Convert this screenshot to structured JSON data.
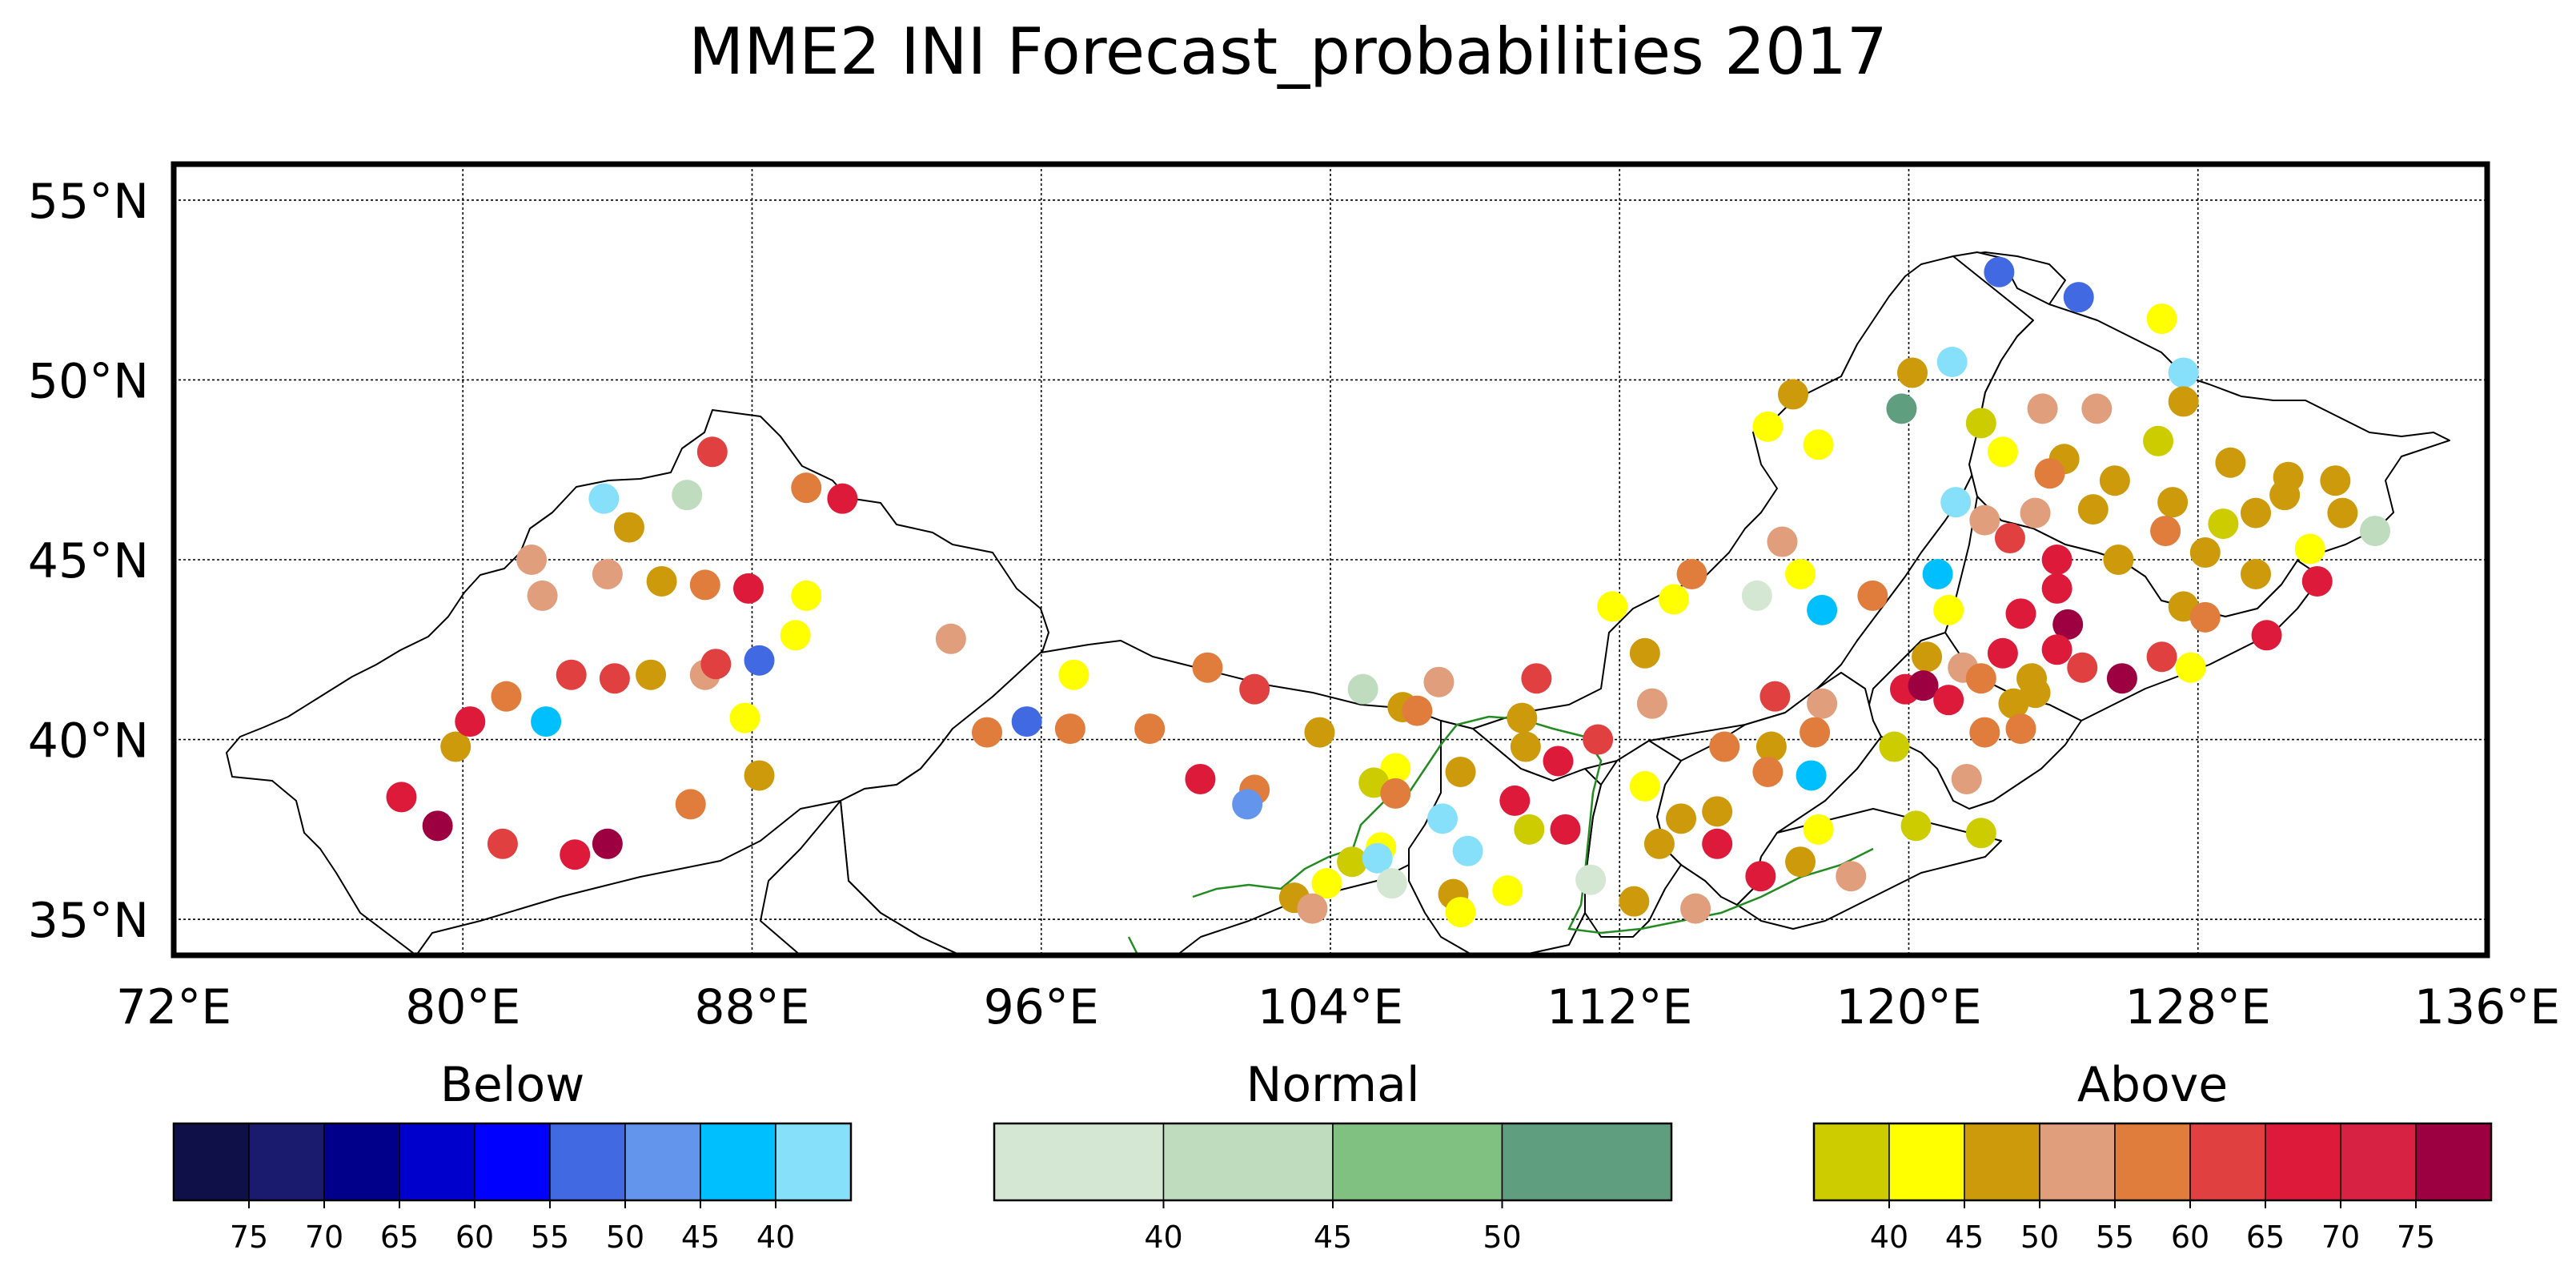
{
  "title": "MME2 INI Forecast_probabilities 2017",
  "map": {
    "lon_range": [
      72,
      136
    ],
    "lat_range": [
      34,
      56
    ],
    "x_ticks": [
      72,
      80,
      88,
      96,
      104,
      112,
      120,
      128,
      136
    ],
    "x_tick_labels": [
      "72°E",
      "80°E",
      "88°E",
      "96°E",
      "104°E",
      "112°E",
      "120°E",
      "128°E",
      "136°E"
    ],
    "y_ticks": [
      35,
      40,
      45,
      50,
      55
    ],
    "y_tick_labels": [
      "35°N",
      "40°N",
      "45°N",
      "50°N",
      "55°N"
    ],
    "grid": true
  },
  "colorbars": [
    {
      "name": "Below",
      "colors": [
        "#101048",
        "#1a1a6e",
        "#00008b",
        "#0000cd",
        "#0000ff",
        "#4169e1",
        "#6495ed",
        "#00bfff",
        "#87e0fa"
      ],
      "labels": [
        "75",
        "70",
        "65",
        "60",
        "55",
        "50",
        "45",
        "40"
      ]
    },
    {
      "name": "Normal",
      "colors": [
        "#d3e7d3",
        "#bfdcbf",
        "#80c080",
        "#5f9f7f"
      ],
      "labels": [
        "40",
        "45",
        "50"
      ]
    },
    {
      "name": "Above",
      "colors": [
        "#cccc00",
        "#ffff00",
        "#cc9a0a",
        "#e09e7c",
        "#e07d3c",
        "#e04040",
        "#dd1a3a",
        "#d72244",
        "#9c0040"
      ],
      "labels": [
        "40",
        "45",
        "50",
        "55",
        "60",
        "65",
        "70",
        "75"
      ]
    }
  ],
  "stations": [
    {
      "lon": 122.5,
      "lat": 53.0,
      "c": "#4169e1"
    },
    {
      "lon": 124.7,
      "lat": 52.3,
      "c": "#4169e1"
    },
    {
      "lon": 127.0,
      "lat": 51.7,
      "c": "#ffff00"
    },
    {
      "lon": 121.2,
      "lat": 50.5,
      "c": "#87e0fa"
    },
    {
      "lon": 120.1,
      "lat": 50.2,
      "c": "#cc9a0a"
    },
    {
      "lon": 127.6,
      "lat": 50.2,
      "c": "#87e0fa"
    },
    {
      "lon": 119.8,
      "lat": 49.2,
      "c": "#5f9f7f"
    },
    {
      "lon": 116.8,
      "lat": 49.6,
      "c": "#cc9a0a"
    },
    {
      "lon": 123.7,
      "lat": 49.2,
      "c": "#e09e7c"
    },
    {
      "lon": 125.2,
      "lat": 49.2,
      "c": "#e09e7c"
    },
    {
      "lon": 127.6,
      "lat": 49.4,
      "c": "#cc9a0a"
    },
    {
      "lon": 116.1,
      "lat": 48.7,
      "c": "#ffff00"
    },
    {
      "lon": 122.0,
      "lat": 48.8,
      "c": "#cccc00"
    },
    {
      "lon": 117.5,
      "lat": 48.2,
      "c": "#ffff00"
    },
    {
      "lon": 122.6,
      "lat": 48.0,
      "c": "#ffff00"
    },
    {
      "lon": 124.3,
      "lat": 47.8,
      "c": "#cc9a0a"
    },
    {
      "lon": 126.9,
      "lat": 48.3,
      "c": "#cccc00"
    },
    {
      "lon": 123.9,
      "lat": 47.4,
      "c": "#e07d3c"
    },
    {
      "lon": 125.7,
      "lat": 47.2,
      "c": "#cc9a0a"
    },
    {
      "lon": 128.9,
      "lat": 47.7,
      "c": "#cc9a0a"
    },
    {
      "lon": 130.5,
      "lat": 47.3,
      "c": "#cc9a0a"
    },
    {
      "lon": 131.8,
      "lat": 47.2,
      "c": "#cc9a0a"
    },
    {
      "lon": 121.3,
      "lat": 46.6,
      "c": "#87e0fa"
    },
    {
      "lon": 122.1,
      "lat": 46.1,
      "c": "#e09e7c"
    },
    {
      "lon": 123.5,
      "lat": 46.3,
      "c": "#e09e7c"
    },
    {
      "lon": 125.1,
      "lat": 46.4,
      "c": "#cc9a0a"
    },
    {
      "lon": 127.3,
      "lat": 46.6,
      "c": "#cc9a0a"
    },
    {
      "lon": 129.6,
      "lat": 46.3,
      "c": "#cc9a0a"
    },
    {
      "lon": 130.4,
      "lat": 46.8,
      "c": "#cc9a0a"
    },
    {
      "lon": 132.0,
      "lat": 46.3,
      "c": "#cc9a0a"
    },
    {
      "lon": 128.7,
      "lat": 46.0,
      "c": "#cccc00"
    },
    {
      "lon": 127.1,
      "lat": 45.8,
      "c": "#e07d3c"
    },
    {
      "lon": 122.8,
      "lat": 45.6,
      "c": "#e04040"
    },
    {
      "lon": 116.5,
      "lat": 45.5,
      "c": "#e09e7c"
    },
    {
      "lon": 131.1,
      "lat": 45.3,
      "c": "#ffff00"
    },
    {
      "lon": 132.9,
      "lat": 45.8,
      "c": "#bfdcbf"
    },
    {
      "lon": 125.8,
      "lat": 45.0,
      "c": "#cc9a0a"
    },
    {
      "lon": 128.2,
      "lat": 45.2,
      "c": "#cc9a0a"
    },
    {
      "lon": 124.1,
      "lat": 45.0,
      "c": "#dd1a3a"
    },
    {
      "lon": 120.8,
      "lat": 44.6,
      "c": "#00bfff"
    },
    {
      "lon": 129.6,
      "lat": 44.6,
      "c": "#cc9a0a"
    },
    {
      "lon": 131.3,
      "lat": 44.4,
      "c": "#dd1a3a"
    },
    {
      "lon": 114.0,
      "lat": 44.6,
      "c": "#e07d3c"
    },
    {
      "lon": 117.0,
      "lat": 44.6,
      "c": "#ffff00"
    },
    {
      "lon": 124.1,
      "lat": 44.2,
      "c": "#dd1a3a"
    },
    {
      "lon": 115.8,
      "lat": 44.0,
      "c": "#d3e7d3"
    },
    {
      "lon": 119.0,
      "lat": 44.0,
      "c": "#e07d3c"
    },
    {
      "lon": 113.5,
      "lat": 43.9,
      "c": "#ffff00"
    },
    {
      "lon": 111.8,
      "lat": 43.7,
      "c": "#ffff00"
    },
    {
      "lon": 117.6,
      "lat": 43.6,
      "c": "#00bfff"
    },
    {
      "lon": 121.1,
      "lat": 43.6,
      "c": "#ffff00"
    },
    {
      "lon": 123.1,
      "lat": 43.5,
      "c": "#dd1a3a"
    },
    {
      "lon": 124.4,
      "lat": 43.2,
      "c": "#9c0040"
    },
    {
      "lon": 127.6,
      "lat": 43.7,
      "c": "#cc9a0a"
    },
    {
      "lon": 128.2,
      "lat": 43.4,
      "c": "#e07d3c"
    },
    {
      "lon": 129.9,
      "lat": 42.9,
      "c": "#dd1a3a"
    },
    {
      "lon": 124.1,
      "lat": 42.5,
      "c": "#dd1a3a"
    },
    {
      "lon": 120.5,
      "lat": 42.3,
      "c": "#cc9a0a"
    },
    {
      "lon": 122.6,
      "lat": 42.4,
      "c": "#dd1a3a"
    },
    {
      "lon": 121.5,
      "lat": 42.0,
      "c": "#e09e7c"
    },
    {
      "lon": 112.7,
      "lat": 42.4,
      "c": "#cc9a0a"
    },
    {
      "lon": 124.8,
      "lat": 42.0,
      "c": "#e04040"
    },
    {
      "lon": 127.0,
      "lat": 42.3,
      "c": "#e04040"
    },
    {
      "lon": 127.8,
      "lat": 42.0,
      "c": "#ffff00"
    },
    {
      "lon": 122.0,
      "lat": 41.7,
      "c": "#e07d3c"
    },
    {
      "lon": 123.4,
      "lat": 41.7,
      "c": "#cc9a0a"
    },
    {
      "lon": 125.9,
      "lat": 41.7,
      "c": "#9c0040"
    },
    {
      "lon": 119.9,
      "lat": 41.4,
      "c": "#dd1a3a"
    },
    {
      "lon": 120.4,
      "lat": 41.5,
      "c": "#9c0040"
    },
    {
      "lon": 121.1,
      "lat": 41.1,
      "c": "#dd1a3a"
    },
    {
      "lon": 123.5,
      "lat": 41.3,
      "c": "#cc9a0a"
    },
    {
      "lon": 122.9,
      "lat": 41.0,
      "c": "#cc9a0a"
    },
    {
      "lon": 109.7,
      "lat": 41.7,
      "c": "#e04040"
    },
    {
      "lon": 107.0,
      "lat": 41.6,
      "c": "#e09e7c"
    },
    {
      "lon": 104.9,
      "lat": 41.4,
      "c": "#bfdcbf"
    },
    {
      "lon": 101.9,
      "lat": 41.4,
      "c": "#e04040"
    },
    {
      "lon": 100.6,
      "lat": 42.0,
      "c": "#e07d3c"
    },
    {
      "lon": 96.9,
      "lat": 41.8,
      "c": "#ffff00"
    },
    {
      "lon": 116.3,
      "lat": 41.2,
      "c": "#e04040"
    },
    {
      "lon": 117.6,
      "lat": 41.0,
      "c": "#e09e7c"
    },
    {
      "lon": 112.9,
      "lat": 41.0,
      "c": "#e09e7c"
    },
    {
      "lon": 106.0,
      "lat": 40.9,
      "c": "#cc9a0a"
    },
    {
      "lon": 106.4,
      "lat": 40.8,
      "c": "#e07d3c"
    },
    {
      "lon": 109.3,
      "lat": 40.6,
      "c": "#cc9a0a"
    },
    {
      "lon": 103.7,
      "lat": 40.2,
      "c": "#cc9a0a"
    },
    {
      "lon": 99.0,
      "lat": 40.3,
      "c": "#e07d3c"
    },
    {
      "lon": 96.8,
      "lat": 40.3,
      "c": "#e07d3c"
    },
    {
      "lon": 95.6,
      "lat": 40.5,
      "c": "#4169e1"
    },
    {
      "lon": 94.5,
      "lat": 40.2,
      "c": "#e07d3c"
    },
    {
      "lon": 117.4,
      "lat": 40.2,
      "c": "#e07d3c"
    },
    {
      "lon": 122.1,
      "lat": 40.2,
      "c": "#e07d3c"
    },
    {
      "lon": 123.1,
      "lat": 40.3,
      "c": "#e07d3c"
    },
    {
      "lon": 111.4,
      "lat": 40.0,
      "c": "#e04040"
    },
    {
      "lon": 114.9,
      "lat": 39.8,
      "c": "#e07d3c"
    },
    {
      "lon": 116.2,
      "lat": 39.8,
      "c": "#cc9a0a"
    },
    {
      "lon": 119.6,
      "lat": 39.8,
      "c": "#cccc00"
    },
    {
      "lon": 109.4,
      "lat": 39.8,
      "c": "#cc9a0a"
    },
    {
      "lon": 110.3,
      "lat": 39.4,
      "c": "#dd1a3a"
    },
    {
      "lon": 107.6,
      "lat": 39.1,
      "c": "#cc9a0a"
    },
    {
      "lon": 105.8,
      "lat": 39.2,
      "c": "#ffff00"
    },
    {
      "lon": 105.2,
      "lat": 38.8,
      "c": "#cccc00"
    },
    {
      "lon": 105.8,
      "lat": 38.5,
      "c": "#e07d3c"
    },
    {
      "lon": 116.1,
      "lat": 39.1,
      "c": "#e07d3c"
    },
    {
      "lon": 117.3,
      "lat": 39.0,
      "c": "#00bfff"
    },
    {
      "lon": 121.6,
      "lat": 38.9,
      "c": "#e09e7c"
    },
    {
      "lon": 100.4,
      "lat": 38.9,
      "c": "#dd1a3a"
    },
    {
      "lon": 101.9,
      "lat": 38.6,
      "c": "#e07d3c"
    },
    {
      "lon": 112.7,
      "lat": 38.7,
      "c": "#ffff00"
    },
    {
      "lon": 109.1,
      "lat": 38.3,
      "c": "#dd1a3a"
    },
    {
      "lon": 114.7,
      "lat": 38.0,
      "c": "#cc9a0a"
    },
    {
      "lon": 113.7,
      "lat": 37.8,
      "c": "#cc9a0a"
    },
    {
      "lon": 101.7,
      "lat": 38.2,
      "c": "#6495ed"
    },
    {
      "lon": 107.1,
      "lat": 37.8,
      "c": "#87e0fa"
    },
    {
      "lon": 107.8,
      "lat": 36.9,
      "c": "#87e0fa"
    },
    {
      "lon": 109.5,
      "lat": 37.5,
      "c": "#cccc00"
    },
    {
      "lon": 110.5,
      "lat": 37.5,
      "c": "#dd1a3a"
    },
    {
      "lon": 117.5,
      "lat": 37.5,
      "c": "#ffff00"
    },
    {
      "lon": 120.2,
      "lat": 37.6,
      "c": "#cccc00"
    },
    {
      "lon": 122.0,
      "lat": 37.4,
      "c": "#cccc00"
    },
    {
      "lon": 113.1,
      "lat": 37.1,
      "c": "#cc9a0a"
    },
    {
      "lon": 114.7,
      "lat": 37.1,
      "c": "#dd1a3a"
    },
    {
      "lon": 105.4,
      "lat": 37.0,
      "c": "#ffff00"
    },
    {
      "lon": 104.6,
      "lat": 36.6,
      "c": "#cccc00"
    },
    {
      "lon": 105.3,
      "lat": 36.7,
      "c": "#87e0fa"
    },
    {
      "lon": 103.9,
      "lat": 36.0,
      "c": "#ffff00"
    },
    {
      "lon": 105.7,
      "lat": 36.0,
      "c": "#d3e7d3"
    },
    {
      "lon": 103.0,
      "lat": 35.6,
      "c": "#cc9a0a"
    },
    {
      "lon": 103.5,
      "lat": 35.3,
      "c": "#e09e7c"
    },
    {
      "lon": 107.4,
      "lat": 35.7,
      "c": "#cc9a0a"
    },
    {
      "lon": 107.6,
      "lat": 35.2,
      "c": "#ffff00"
    },
    {
      "lon": 108.9,
      "lat": 35.8,
      "c": "#ffff00"
    },
    {
      "lon": 111.2,
      "lat": 36.1,
      "c": "#d3e7d3"
    },
    {
      "lon": 112.4,
      "lat": 35.5,
      "c": "#cc9a0a"
    },
    {
      "lon": 114.1,
      "lat": 35.3,
      "c": "#e09e7c"
    },
    {
      "lon": 115.9,
      "lat": 36.2,
      "c": "#dd1a3a"
    },
    {
      "lon": 117.0,
      "lat": 36.6,
      "c": "#cc9a0a"
    },
    {
      "lon": 118.4,
      "lat": 36.2,
      "c": "#e09e7c"
    },
    {
      "lon": 78.3,
      "lat": 38.4,
      "c": "#dd1a3a"
    },
    {
      "lon": 79.3,
      "lat": 37.6,
      "c": "#9c0040"
    },
    {
      "lon": 79.8,
      "lat": 39.8,
      "c": "#cc9a0a"
    },
    {
      "lon": 80.2,
      "lat": 40.5,
      "c": "#dd1a3a"
    },
    {
      "lon": 81.2,
      "lat": 41.2,
      "c": "#e07d3c"
    },
    {
      "lon": 81.1,
      "lat": 37.1,
      "c": "#e04040"
    },
    {
      "lon": 83.1,
      "lat": 36.8,
      "c": "#dd1a3a"
    },
    {
      "lon": 84.0,
      "lat": 37.1,
      "c": "#9c0040"
    },
    {
      "lon": 82.3,
      "lat": 40.5,
      "c": "#00bfff"
    },
    {
      "lon": 83.0,
      "lat": 41.8,
      "c": "#e04040"
    },
    {
      "lon": 84.2,
      "lat": 41.7,
      "c": "#e04040"
    },
    {
      "lon": 85.2,
      "lat": 41.8,
      "c": "#cc9a0a"
    },
    {
      "lon": 86.7,
      "lat": 41.8,
      "c": "#e09e7c"
    },
    {
      "lon": 87.0,
      "lat": 42.1,
      "c": "#e04040"
    },
    {
      "lon": 88.2,
      "lat": 42.2,
      "c": "#4169e1"
    },
    {
      "lon": 86.3,
      "lat": 38.2,
      "c": "#e07d3c"
    },
    {
      "lon": 88.2,
      "lat": 39.0,
      "c": "#cc9a0a"
    },
    {
      "lon": 87.8,
      "lat": 40.6,
      "c": "#ffff00"
    },
    {
      "lon": 89.2,
      "lat": 42.9,
      "c": "#ffff00"
    },
    {
      "lon": 89.5,
      "lat": 44.0,
      "c": "#ffff00"
    },
    {
      "lon": 82.2,
      "lat": 44.0,
      "c": "#e09e7c"
    },
    {
      "lon": 81.9,
      "lat": 45.0,
      "c": "#e09e7c"
    },
    {
      "lon": 84.0,
      "lat": 44.6,
      "c": "#e09e7c"
    },
    {
      "lon": 85.5,
      "lat": 44.4,
      "c": "#cc9a0a"
    },
    {
      "lon": 86.7,
      "lat": 44.3,
      "c": "#e07d3c"
    },
    {
      "lon": 87.9,
      "lat": 44.2,
      "c": "#dd1a3a"
    },
    {
      "lon": 84.6,
      "lat": 45.9,
      "c": "#cc9a0a"
    },
    {
      "lon": 83.9,
      "lat": 46.7,
      "c": "#87e0fa"
    },
    {
      "lon": 86.2,
      "lat": 46.8,
      "c": "#bfdcbf"
    },
    {
      "lon": 89.5,
      "lat": 47.0,
      "c": "#e07d3c"
    },
    {
      "lon": 90.5,
      "lat": 46.7,
      "c": "#dd1a3a"
    },
    {
      "lon": 86.9,
      "lat": 48.0,
      "c": "#e04040"
    },
    {
      "lon": 93.5,
      "lat": 42.8,
      "c": "#e09e7c"
    }
  ]
}
